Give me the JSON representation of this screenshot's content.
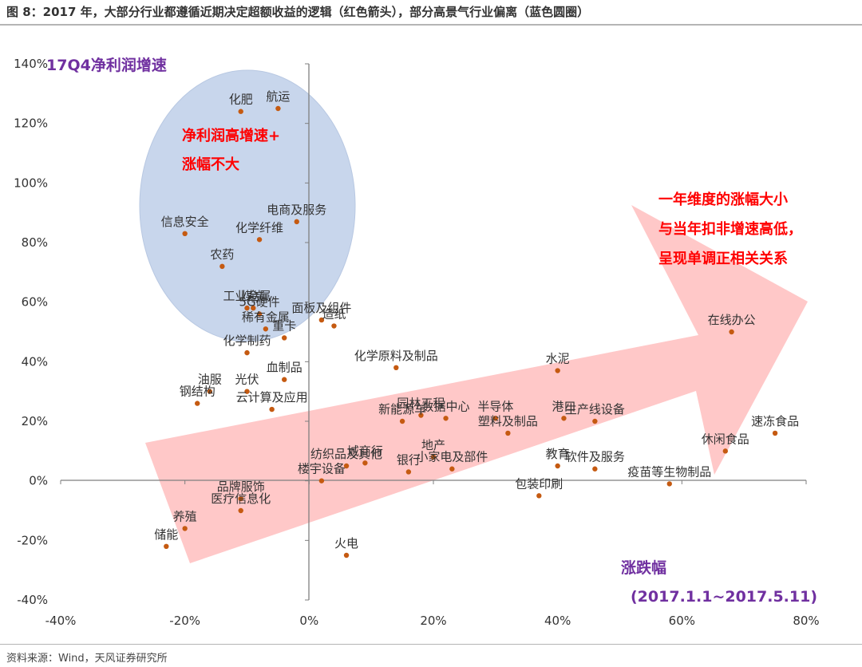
{
  "figure": {
    "title": "图 8：2017 年，大部分行业都遵循近期决定超额收益的逻辑（红色箭头），部分高景气行业偏离（蓝色圆圈）",
    "source": "资料来源：Wind，天风证券研究所"
  },
  "colors": {
    "point": "#c55a11",
    "arrow": "#ff9a9a",
    "circle": "#c8d6ec",
    "red_text": "#ff0000",
    "purple_text": "#7030a0"
  },
  "chart_data": {
    "type": "scatter",
    "xlim": [
      -0.4,
      0.8
    ],
    "ylim": [
      -0.4,
      1.4
    ],
    "x_ticks": [
      -0.4,
      -0.2,
      0,
      0.2,
      0.4,
      0.6,
      0.8
    ],
    "y_ticks": [
      -0.4,
      -0.2,
      0,
      0.2,
      0.4,
      0.6,
      0.8,
      1.0,
      1.2,
      1.4
    ],
    "x_tick_labels": [
      "-40%",
      "-20%",
      "0%",
      "20%",
      "40%",
      "60%",
      "80%"
    ],
    "y_tick_labels": [
      "-40%",
      "-20%",
      "0%",
      "20%",
      "40%",
      "60%",
      "80%",
      "100%",
      "120%",
      "140%"
    ],
    "ylabel": "17Q4净利润增速",
    "xlabel": "涨跌幅",
    "xlabel_range": "(2017.1.1~2017.5.11)",
    "grid": false,
    "annotations": {
      "circle_text": [
        "净利润高增速+",
        "涨幅不大"
      ],
      "arrow_text": [
        "一年维度的涨幅大小",
        "与当年扣非增速高低，",
        "呈现单调正相关关系"
      ]
    },
    "points": [
      {
        "name": "化肥",
        "x": -0.11,
        "y": 1.24
      },
      {
        "name": "航运",
        "x": -0.05,
        "y": 1.25
      },
      {
        "name": "信息安全",
        "x": -0.2,
        "y": 0.83
      },
      {
        "name": "电商及服务",
        "x": -0.02,
        "y": 0.87
      },
      {
        "name": "化学纤维",
        "x": -0.08,
        "y": 0.81
      },
      {
        "name": "农药",
        "x": -0.14,
        "y": 0.72
      },
      {
        "name": "工业金属",
        "x": -0.1,
        "y": 0.58
      },
      {
        "name": "煤炭",
        "x": -0.09,
        "y": 0.58
      },
      {
        "name": "5G硬件",
        "x": -0.08,
        "y": 0.56
      },
      {
        "name": "面板及组件",
        "x": 0.02,
        "y": 0.54
      },
      {
        "name": "造纸",
        "x": 0.04,
        "y": 0.52
      },
      {
        "name": "稀有金属",
        "x": -0.07,
        "y": 0.51
      },
      {
        "name": "重卡",
        "x": -0.04,
        "y": 0.48
      },
      {
        "name": "化学制药",
        "x": -0.1,
        "y": 0.43
      },
      {
        "name": "血制品",
        "x": -0.04,
        "y": 0.34
      },
      {
        "name": "油服",
        "x": -0.16,
        "y": 0.3
      },
      {
        "name": "光伏",
        "x": -0.1,
        "y": 0.3
      },
      {
        "name": "钢结构",
        "x": -0.18,
        "y": 0.26
      },
      {
        "name": "云计算及应用",
        "x": -0.06,
        "y": 0.24
      },
      {
        "name": "化学原料及制品",
        "x": 0.14,
        "y": 0.38
      },
      {
        "name": "水泥",
        "x": 0.4,
        "y": 0.37
      },
      {
        "name": "园林工程",
        "x": 0.18,
        "y": 0.22
      },
      {
        "name": "新能源车",
        "x": 0.15,
        "y": 0.2
      },
      {
        "name": "数据中心",
        "x": 0.22,
        "y": 0.21
      },
      {
        "name": "半导体",
        "x": 0.3,
        "y": 0.21
      },
      {
        "name": "港口",
        "x": 0.41,
        "y": 0.21
      },
      {
        "name": "生产线设备",
        "x": 0.46,
        "y": 0.2
      },
      {
        "name": "塑料及制品",
        "x": 0.32,
        "y": 0.16
      },
      {
        "name": "在线办公",
        "x": 0.68,
        "y": 0.5
      },
      {
        "name": "速冻食品",
        "x": 0.75,
        "y": 0.16
      },
      {
        "name": "休闲食品",
        "x": 0.67,
        "y": 0.1
      },
      {
        "name": "教育",
        "x": 0.4,
        "y": 0.05
      },
      {
        "name": "软件及服务",
        "x": 0.46,
        "y": 0.04
      },
      {
        "name": "疫苗等生物制品",
        "x": 0.58,
        "y": -0.01
      },
      {
        "name": "包装印刷",
        "x": 0.37,
        "y": -0.05
      },
      {
        "name": "小家电及部件",
        "x": 0.23,
        "y": 0.04
      },
      {
        "name": "银行",
        "x": 0.16,
        "y": 0.03
      },
      {
        "name": "地产",
        "x": 0.2,
        "y": 0.08
      },
      {
        "name": "纺织品及其他",
        "x": 0.06,
        "y": 0.05
      },
      {
        "name": "城商行",
        "x": 0.09,
        "y": 0.06
      },
      {
        "name": "楼宇设备",
        "x": 0.02,
        "y": 0.0
      },
      {
        "name": "品牌服饰",
        "x": -0.11,
        "y": -0.06
      },
      {
        "name": "医疗信息化",
        "x": -0.11,
        "y": -0.1
      },
      {
        "name": "养殖",
        "x": -0.2,
        "y": -0.16
      },
      {
        "name": "火电",
        "x": 0.06,
        "y": -0.25
      },
      {
        "name": "储能",
        "x": -0.23,
        "y": -0.22
      }
    ]
  }
}
